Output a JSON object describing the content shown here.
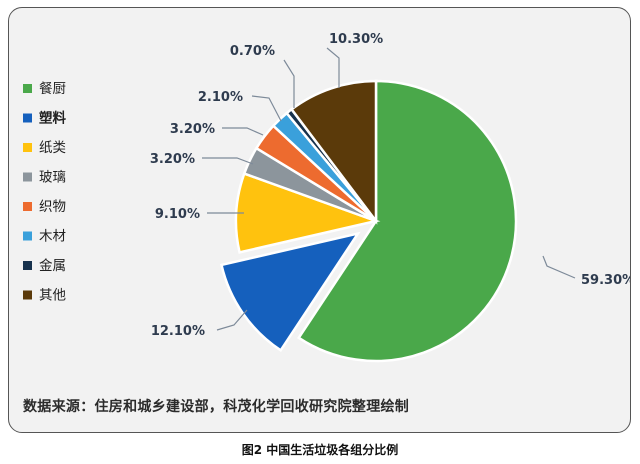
{
  "chart_data": {
    "type": "pie",
    "categories": [
      "餐厨",
      "塑料",
      "纸类",
      "玻璃",
      "织物",
      "木材",
      "金属",
      "其他"
    ],
    "values": [
      59.3,
      12.1,
      9.1,
      3.2,
      3.2,
      2.1,
      0.7,
      10.3
    ],
    "labels": [
      "59.30%",
      "12.10%",
      "9.10%",
      "3.20%",
      "3.20%",
      "2.10%",
      "0.70%",
      "10.30%"
    ],
    "colors": [
      "#4aa84a",
      "#1560bd",
      "#ffc20e",
      "#8c959c",
      "#ed6b2f",
      "#3aa0db",
      "#17324d",
      "#5b3a0a"
    ],
    "highlight_category": "塑料",
    "highlight_color": "#d0021b",
    "exploded": [
      "塑料"
    ],
    "legend_position": "left",
    "source_note": "数据来源：住房和城乡建设部，科茂化学回收研究院整理绘制",
    "caption": "图2  中国生活垃圾各组分比例"
  }
}
